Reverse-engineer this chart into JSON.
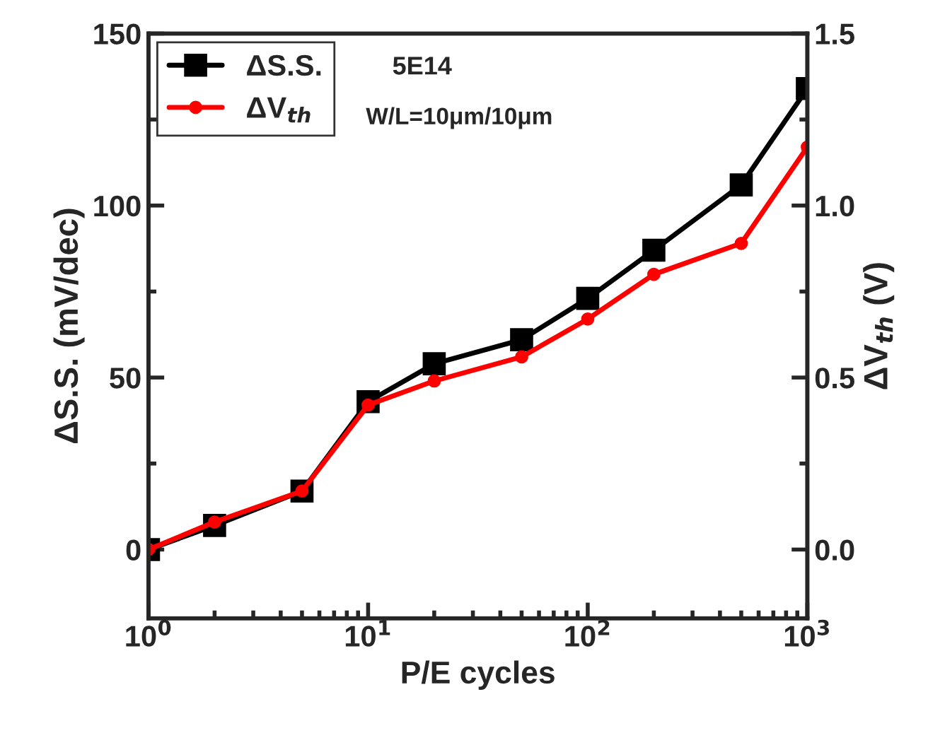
{
  "chart_data": {
    "type": "line",
    "xlabel": "P/E cycles",
    "ylabel": "ΔS.S. (mV/dec)",
    "y2label": "ΔV$_{th}$ (V)",
    "x": [
      1,
      2,
      5,
      10,
      20,
      50,
      100,
      200,
      500,
      1000
    ],
    "series": [
      {
        "name": "ΔS.S.",
        "color": "#000000",
        "marker": "square",
        "values": [
          0,
          7,
          17,
          43,
          54,
          61,
          73,
          87,
          106,
          134
        ]
      },
      {
        "name": "ΔV$_{th}$",
        "color": "#ff0000",
        "marker": "circle",
        "axis": "y2",
        "values": [
          0,
          0.08,
          0.17,
          0.42,
          0.49,
          0.56,
          0.67,
          0.8,
          0.89,
          1.17
        ]
      }
    ],
    "log": "x",
    "xlim": [
      1,
      1000
    ],
    "xticks": [
      {
        "value": 1,
        "label": "10$^{0}$"
      },
      {
        "value": 10,
        "label": "10$^{1}$"
      },
      {
        "value": 100,
        "label": "10$^{2}$"
      },
      {
        "value": 1000,
        "label": "10$^{3}$"
      }
    ],
    "ylim": [
      -20,
      150
    ],
    "yticks": [
      0,
      50,
      100,
      150
    ],
    "y2lim": [
      -0.2,
      1.5
    ],
    "y2ticks": [
      {
        "value": 0,
        "label": "0.0"
      },
      {
        "value": 0.5,
        "label": "0.5"
      },
      {
        "value": 1,
        "label": "1.0"
      },
      {
        "value": 1.5,
        "label": "1.5"
      }
    ],
    "annotations": [
      "5E14",
      "W/L=10μm/10μm"
    ],
    "legend": "top left",
    "grid": false
  }
}
